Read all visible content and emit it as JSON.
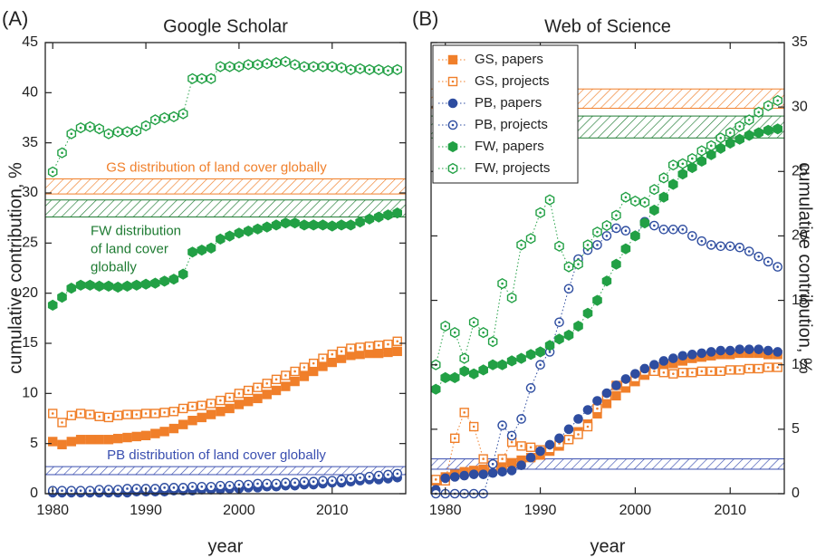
{
  "chart_data": [
    {
      "type": "line",
      "panel_label": "(A)",
      "title": "Google Scholar",
      "xlabel": "year",
      "ylabel": "cumulative contribution, %",
      "y_axis_side": "left",
      "x": [
        1980,
        1981,
        1982,
        1983,
        1984,
        1985,
        1986,
        1987,
        1988,
        1989,
        1990,
        1991,
        1992,
        1993,
        1994,
        1995,
        1996,
        1997,
        1998,
        1999,
        2000,
        2001,
        2002,
        2003,
        2004,
        2005,
        2006,
        2007,
        2008,
        2009,
        2010,
        2011,
        2012,
        2013,
        2014,
        2015,
        2016,
        2017
      ],
      "xlim": [
        1979.2,
        2017.9
      ],
      "xticks": [
        1980,
        1990,
        2000,
        2010
      ],
      "ylim": [
        0,
        45
      ],
      "yticks": [
        0,
        5,
        10,
        15,
        20,
        25,
        30,
        35,
        40,
        45
      ],
      "bands": [
        {
          "range": [
            29.9,
            31.4
          ],
          "color": "#f07f2a",
          "label": [
            "GS distribution of land cover globally"
          ]
        },
        {
          "range": [
            27.6,
            29.3
          ],
          "color": "#1e7b32",
          "label": [
            "FW distribution",
            "of land cover",
            "globally"
          ]
        },
        {
          "range": [
            1.9,
            2.7
          ],
          "color": "#3a4fb0",
          "label": [
            "PB distribution of land cover globally"
          ]
        }
      ],
      "series": [
        {
          "color": "#f07f2a",
          "marker": "square",
          "filled": true,
          "values": [
            5.2,
            4.9,
            5.2,
            5.4,
            5.4,
            5.4,
            5.4,
            5.5,
            5.6,
            5.7,
            5.8,
            6.0,
            6.2,
            6.5,
            6.9,
            7.3,
            7.6,
            7.9,
            8.2,
            8.5,
            8.9,
            9.2,
            9.5,
            9.9,
            10.3,
            10.7,
            11.2,
            11.7,
            12.2,
            12.7,
            13.1,
            13.5,
            13.8,
            13.9,
            14.0,
            14.0,
            14.1,
            14.2
          ]
        },
        {
          "color": "#f07f2a",
          "marker": "square",
          "filled": false,
          "values": [
            8.0,
            7.1,
            7.8,
            8.0,
            7.9,
            7.7,
            7.6,
            7.8,
            7.9,
            7.9,
            8.0,
            8.0,
            8.1,
            8.2,
            8.5,
            8.7,
            8.8,
            9.0,
            9.3,
            9.6,
            10.0,
            10.3,
            10.6,
            11.0,
            11.4,
            11.8,
            12.2,
            12.6,
            13.0,
            13.5,
            13.9,
            14.2,
            14.5,
            14.6,
            14.7,
            14.8,
            14.9,
            15.2
          ]
        },
        {
          "color": "#2e4da0",
          "marker": "circle",
          "filled": true,
          "values": [
            0.1,
            0.1,
            0.1,
            0.1,
            0.1,
            0.1,
            0.1,
            0.1,
            0.1,
            0.2,
            0.2,
            0.2,
            0.2,
            0.3,
            0.3,
            0.3,
            0.4,
            0.4,
            0.4,
            0.5,
            0.5,
            0.6,
            0.6,
            0.7,
            0.7,
            0.8,
            0.8,
            0.9,
            0.9,
            1.0,
            1.1,
            1.1,
            1.2,
            1.3,
            1.4,
            1.4,
            1.5,
            1.6
          ]
        },
        {
          "color": "#2e4da0",
          "marker": "circle",
          "filled": false,
          "values": [
            0.3,
            0.3,
            0.3,
            0.3,
            0.3,
            0.4,
            0.4,
            0.4,
            0.5,
            0.5,
            0.5,
            0.5,
            0.6,
            0.6,
            0.6,
            0.7,
            0.7,
            0.7,
            0.8,
            0.8,
            0.9,
            0.9,
            1.0,
            1.0,
            1.0,
            1.1,
            1.1,
            1.2,
            1.2,
            1.3,
            1.3,
            1.4,
            1.5,
            1.6,
            1.7,
            1.8,
            1.9,
            2.0
          ]
        },
        {
          "color": "#22a045",
          "marker": "hexagon",
          "filled": true,
          "values": [
            18.8,
            19.6,
            20.5,
            20.8,
            20.8,
            20.7,
            20.7,
            20.6,
            20.7,
            20.8,
            20.9,
            21.0,
            21.2,
            21.4,
            21.9,
            24.1,
            24.3,
            24.5,
            25.4,
            25.7,
            26.0,
            26.2,
            26.4,
            26.6,
            26.8,
            27.0,
            27.0,
            26.8,
            26.8,
            26.8,
            26.7,
            26.8,
            26.8,
            27.1,
            27.4,
            27.6,
            27.8,
            28.0
          ]
        },
        {
          "color": "#22a045",
          "marker": "hexagon",
          "filled": false,
          "values": [
            32.1,
            34.0,
            35.9,
            36.5,
            36.6,
            36.4,
            35.9,
            36.1,
            36.1,
            36.2,
            36.7,
            37.3,
            37.5,
            37.6,
            37.9,
            41.4,
            41.4,
            41.4,
            42.6,
            42.6,
            42.6,
            42.8,
            42.8,
            42.9,
            43.0,
            43.1,
            42.8,
            42.6,
            42.6,
            42.6,
            42.6,
            42.5,
            42.3,
            42.4,
            42.3,
            42.3,
            42.2,
            42.3
          ]
        }
      ]
    },
    {
      "type": "line",
      "panel_label": "(B)",
      "title": "Web of Science",
      "xlabel": "year",
      "ylabel": "cumulative contribution, %",
      "y_axis_side": "right",
      "legend": "upper left",
      "x": [
        1979,
        1980,
        1981,
        1982,
        1983,
        1984,
        1985,
        1986,
        1987,
        1988,
        1989,
        1990,
        1991,
        1992,
        1993,
        1994,
        1995,
        1996,
        1997,
        1998,
        1999,
        2000,
        2001,
        2002,
        2003,
        2004,
        2005,
        2006,
        2007,
        2008,
        2009,
        2010,
        2011,
        2012,
        2013,
        2014,
        2015
      ],
      "xlim": [
        1978.5,
        2015.7
      ],
      "xticks": [
        1980,
        1990,
        2000,
        2010
      ],
      "ylim": [
        0,
        35
      ],
      "yticks": [
        0,
        5,
        10,
        15,
        20,
        25,
        30,
        35
      ],
      "bands": [
        {
          "range": [
            29.9,
            31.4
          ],
          "color": "#f07f2a"
        },
        {
          "range": [
            27.6,
            29.3
          ],
          "color": "#1e7b32"
        },
        {
          "range": [
            1.9,
            2.7
          ],
          "color": "#3a4fb0"
        }
      ],
      "series": [
        {
          "name": "GS, papers",
          "color": "#f07f2a",
          "marker": "square",
          "filled": true,
          "values": [
            1.0,
            1.3,
            1.5,
            1.7,
            1.8,
            1.9,
            2.0,
            2.2,
            2.4,
            2.6,
            2.8,
            3.0,
            3.3,
            3.7,
            4.2,
            4.8,
            5.4,
            6.2,
            7.0,
            7.6,
            8.2,
            8.7,
            9.2,
            9.6,
            9.9,
            10.1,
            10.3,
            10.5,
            10.6,
            10.7,
            10.8,
            10.8,
            10.9,
            10.9,
            10.9,
            10.8,
            10.8
          ]
        },
        {
          "name": "GS, projects",
          "color": "#f07f2a",
          "marker": "square",
          "filled": false,
          "values": [
            1.1,
            1.0,
            4.3,
            6.3,
            5.2,
            2.7,
            2.2,
            2.7,
            4.0,
            3.7,
            3.6,
            3.4,
            3.5,
            3.9,
            4.2,
            4.6,
            5.2,
            6.6,
            7.6,
            8.4,
            8.6,
            9.0,
            9.5,
            9.5,
            9.4,
            9.3,
            9.4,
            9.4,
            9.5,
            9.5,
            9.5,
            9.6,
            9.6,
            9.7,
            9.7,
            9.8,
            9.8
          ]
        },
        {
          "name": "PB, papers",
          "color": "#2e4da0",
          "marker": "circle",
          "filled": true,
          "values": [
            0.3,
            1.2,
            1.3,
            1.4,
            1.5,
            1.5,
            1.6,
            1.7,
            1.8,
            2.2,
            2.8,
            3.3,
            3.8,
            4.3,
            5.0,
            5.8,
            6.5,
            7.2,
            7.8,
            8.4,
            8.9,
            9.3,
            9.7,
            10.0,
            10.3,
            10.5,
            10.7,
            10.8,
            10.9,
            11.0,
            11.1,
            11.1,
            11.2,
            11.2,
            11.2,
            11.1,
            11.0
          ]
        },
        {
          "name": "PB, projects",
          "color": "#2e4da0",
          "marker": "circle",
          "filled": false,
          "values": [
            0,
            0,
            0,
            0,
            0,
            0,
            2.3,
            5.3,
            4.5,
            5.8,
            8.2,
            10.0,
            11.0,
            13.3,
            15.9,
            18.2,
            18.9,
            19.3,
            20.0,
            20.6,
            20.4,
            20.0,
            21.1,
            20.8,
            20.5,
            20.5,
            20.5,
            20.0,
            19.6,
            19.3,
            19.2,
            19.2,
            19.1,
            18.8,
            18.4,
            18.0,
            17.6
          ]
        },
        {
          "name": "FW, papers",
          "color": "#22a045",
          "marker": "hexagon",
          "filled": true,
          "values": [
            8.1,
            9.0,
            9.0,
            9.5,
            9.3,
            9.6,
            10.0,
            10.0,
            10.3,
            10.5,
            10.8,
            11.0,
            11.5,
            12.0,
            12.3,
            13.0,
            14.0,
            15.0,
            16.5,
            17.8,
            19.0,
            20.0,
            21.0,
            22.0,
            23.0,
            24.0,
            24.8,
            25.3,
            25.8,
            26.3,
            26.8,
            27.2,
            27.5,
            27.8,
            28.0,
            28.2,
            28.3
          ]
        },
        {
          "name": "FW, projects",
          "color": "#22a045",
          "marker": "hexagon",
          "filled": false,
          "values": [
            10.0,
            13.0,
            12.5,
            10.5,
            13.3,
            12.5,
            11.8,
            16.3,
            15.2,
            19.3,
            19.8,
            21.8,
            22.8,
            19.2,
            17.6,
            17.8,
            19.3,
            20.3,
            20.8,
            21.6,
            23.0,
            22.7,
            22.6,
            23.6,
            24.5,
            25.5,
            25.6,
            26.0,
            26.6,
            27.0,
            27.6,
            28.0,
            28.5,
            29.0,
            29.6,
            30.1,
            30.5
          ]
        }
      ]
    }
  ]
}
